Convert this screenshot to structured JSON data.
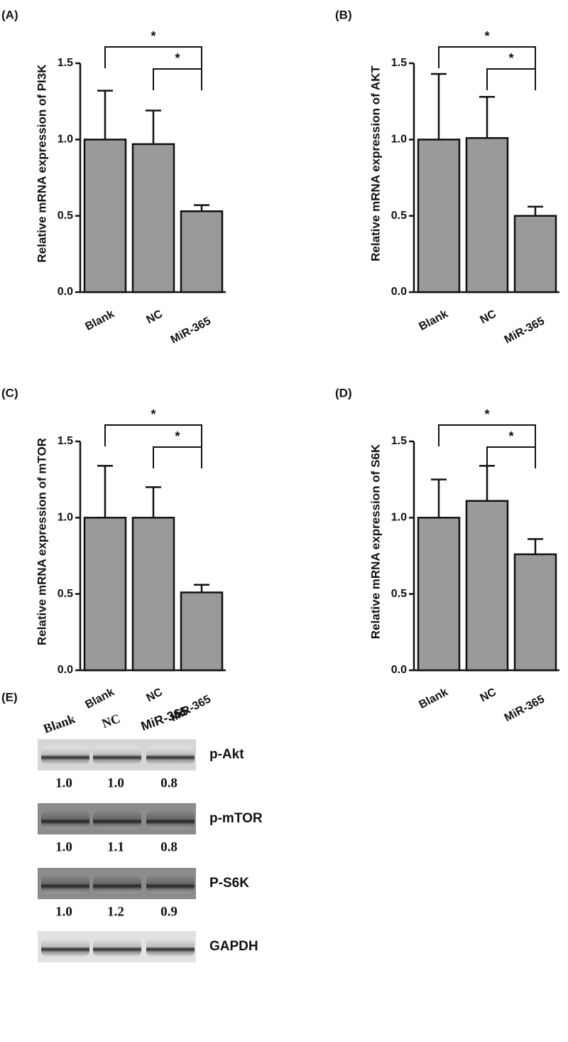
{
  "chart_data": [
    {
      "type": "bar",
      "panel": "(A)",
      "ylabel": "Relative mRNA expression of PI3K",
      "categories": [
        "Blank",
        "NC",
        "MiR-365"
      ],
      "values": [
        1.0,
        0.97,
        0.53
      ],
      "errors": [
        0.32,
        0.22,
        0.04
      ],
      "color": "#9a9a9a",
      "ylim": [
        0,
        1.5
      ],
      "yticks": [
        {
          "value": 0,
          "label": "0.0"
        },
        {
          "value": 0.5,
          "label": "0.5"
        },
        {
          "value": 1,
          "label": "1.0"
        },
        {
          "value": 1.5,
          "label": "1.5"
        }
      ],
      "annotations": [
        {
          "text": "*",
          "from": 0,
          "to": 2
        },
        {
          "text": "*",
          "from": 1,
          "to": 2
        }
      ]
    },
    {
      "type": "bar",
      "panel": "(B)",
      "ylabel": "Relative mRNA expression of AKT",
      "categories": [
        "Blank",
        "NC",
        "MiR-365"
      ],
      "values": [
        1.0,
        1.01,
        0.5
      ],
      "errors": [
        0.43,
        0.27,
        0.06
      ],
      "color": "#9a9a9a",
      "ylim": [
        0,
        1.5
      ],
      "yticks": [
        {
          "value": 0,
          "label": "0.0"
        },
        {
          "value": 0.5,
          "label": "0.5"
        },
        {
          "value": 1,
          "label": "1.0"
        },
        {
          "value": 1.5,
          "label": "1.5"
        }
      ],
      "annotations": [
        {
          "text": "*",
          "from": 0,
          "to": 2
        },
        {
          "text": "*",
          "from": 1,
          "to": 2
        }
      ]
    },
    {
      "type": "bar",
      "panel": "(C)",
      "ylabel": "Relative mRNA expression of mTOR",
      "categories": [
        "Blank",
        "NC",
        "MiR-365"
      ],
      "values": [
        1.0,
        1.0,
        0.51
      ],
      "errors": [
        0.34,
        0.2,
        0.05
      ],
      "color": "#9a9a9a",
      "ylim": [
        0,
        1.5
      ],
      "yticks": [
        {
          "value": 0,
          "label": "0.0"
        },
        {
          "value": 0.5,
          "label": "0.5"
        },
        {
          "value": 1,
          "label": "1.0"
        },
        {
          "value": 1.5,
          "label": "1.5"
        }
      ],
      "annotations": [
        {
          "text": "*",
          "from": 0,
          "to": 2
        },
        {
          "text": "*",
          "from": 1,
          "to": 2
        }
      ]
    },
    {
      "type": "bar",
      "panel": "(D)",
      "ylabel": "Relative mRNA expression of S6K",
      "categories": [
        "Blank",
        "NC",
        "MiR-365"
      ],
      "values": [
        1.0,
        1.11,
        0.76
      ],
      "errors": [
        0.25,
        0.23,
        0.1
      ],
      "color": "#9a9a9a",
      "ylim": [
        0,
        1.5
      ],
      "yticks": [
        {
          "value": 0,
          "label": "0.0"
        },
        {
          "value": 0.5,
          "label": "0.5"
        },
        {
          "value": 1,
          "label": "1.0"
        },
        {
          "value": 1.5,
          "label": "1.5"
        }
      ],
      "annotations": [
        {
          "text": "*",
          "from": 0,
          "to": 2
        },
        {
          "text": "*",
          "from": 1,
          "to": 2
        }
      ]
    }
  ],
  "blot": {
    "panel": "(E)",
    "lanes": [
      "Blank",
      "NC",
      "MiR-365"
    ],
    "rows": [
      {
        "label": "p-Akt",
        "values": [
          "1.0",
          "1.0",
          "0.8"
        ]
      },
      {
        "label": "p-mTOR",
        "values": [
          "1.0",
          "1.1",
          "0.8"
        ]
      },
      {
        "label": "P-S6K",
        "values": [
          "1.0",
          "1.2",
          "0.9"
        ]
      },
      {
        "label": "GAPDH"
      }
    ]
  }
}
